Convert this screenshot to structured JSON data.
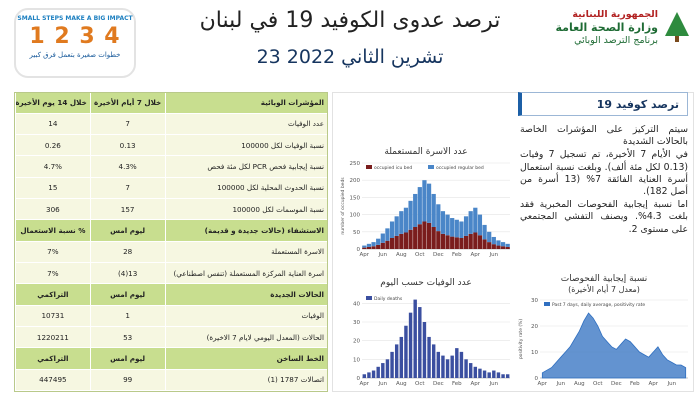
{
  "header": {
    "campaign": [
      "SMALL STEPS MAKE A BIG IMPACT",
      "1 2 3 4",
      "خطوات صغيرة بتعمل فرق كبير"
    ],
    "title": "ترصد عدوى الكوفيد 19 في لبنان",
    "date": "23 تشرين الثاني 2022",
    "ministry": [
      "الجمهورية اللبنانية",
      "وزارة الصحة العامة",
      "برنامج الترصد الوبائي"
    ]
  },
  "table": {
    "sections": [
      {
        "header": [
          "المؤشرات الوبائية",
          "خلال 7 أيام الأخيرة",
          "خلال 14 يوم الأخيرة"
        ],
        "rows": [
          [
            "عدد الوفيات",
            "7",
            "14"
          ],
          [
            "نسبة الوفيات لكل 100000",
            "0.13",
            "0.26"
          ],
          [
            "نسبة إيجابية فحص PCR لكل مئة فحص",
            "4.3%",
            "4.7%"
          ],
          [
            "نسبة الحدوث المحلية لكل 100000",
            "7",
            "15"
          ],
          [
            "نسبة الموسمات لكل 100000",
            "157",
            "306"
          ]
        ]
      },
      {
        "header": [
          "الاستشفاء (حالات جديدة و قديمة)",
          "ليوم امس",
          "% نسبة الاستعمال"
        ],
        "rows": [
          [
            "الاسرة المستعملة",
            "28",
            "7%"
          ],
          [
            "اسرة العناية المركزة المستعملة (تنفس اصطناعي)",
            "13(4)",
            "7%"
          ]
        ]
      },
      {
        "header": [
          "الحالات الجديدة",
          "ليوم امس",
          "التراكمي"
        ],
        "rows": [
          [
            "الوفيات",
            "1",
            "10731"
          ],
          [
            "الحالات (المعدل اليومي لايام 7 الاخيرة)",
            "53",
            "1220211"
          ]
        ]
      },
      {
        "header": [
          "الخط الساخن",
          "ليوم امس",
          "التراكمي"
        ],
        "rows": [
          [
            "اتصالات 1787 (1)",
            "99",
            "447495"
          ]
        ]
      }
    ]
  },
  "summary": {
    "title": "ترصد كوفيد 19",
    "paragraphs": [
      "سيتم التركيز على المؤشرات الخاصة بالحالات الشديدة",
      "في الأيام 7 الأخيرة، تم تسجيل 7 وفيات (0.13 لكل مئة ألف). وبلغت نسبة استعمال أسرة العناية الفائقة 7% (13 أسرة من أصل 182).",
      "اما نسبة إيجابية الفحوصات المخبرية فقد بلغت 4.3%. ويصنف التفشي المجتمعي على مستوى 2."
    ]
  },
  "charts": [
    {
      "type": "stacked_bar",
      "title": "عدد الاسرة المستعملة",
      "y_label": "number of occupied beds",
      "categories": [
        "Apr",
        null,
        null,
        null,
        "Jun",
        null,
        null,
        null,
        "Aug",
        null,
        null,
        null,
        "Oct",
        null,
        null,
        null,
        "Dec",
        null,
        null,
        null,
        "Feb",
        null,
        null,
        null,
        "Apr",
        null,
        null,
        null,
        "Jun",
        null,
        null,
        null
      ],
      "series": [
        {
          "name": "occupied icu bed",
          "color": "#7a1d1d",
          "values": [
            4,
            6,
            8,
            12,
            18,
            24,
            32,
            38,
            44,
            48,
            56,
            64,
            72,
            80,
            76,
            64,
            52,
            44,
            40,
            36,
            34,
            32,
            38,
            44,
            48,
            40,
            28,
            20,
            14,
            10,
            8,
            6
          ]
        },
        {
          "name": "occupied regular bed",
          "color": "#4a86c8",
          "values": [
            6,
            9,
            12,
            18,
            27,
            36,
            48,
            57,
            66,
            72,
            84,
            96,
            108,
            120,
            114,
            96,
            78,
            66,
            60,
            54,
            51,
            48,
            57,
            66,
            72,
            60,
            42,
            30,
            21,
            15,
            12,
            9
          ]
        }
      ],
      "ylim": [
        0,
        250
      ],
      "yticks": [
        0,
        50,
        100,
        150,
        200,
        250
      ],
      "grid": true
    },
    {
      "type": "bar",
      "title": "عدد الوفيات حسب اليوم",
      "categories": [
        "Apr",
        null,
        null,
        null,
        "Jun",
        null,
        null,
        null,
        "Aug",
        null,
        null,
        null,
        "Oct",
        null,
        null,
        null,
        "Dec",
        null,
        null,
        null,
        "Feb",
        null,
        null,
        null,
        "Apr",
        null,
        null,
        null,
        "Jun",
        null,
        null,
        null
      ],
      "series": [
        {
          "name": "Daily deaths",
          "color": "#3b4fa0",
          "values": [
            2,
            3,
            4,
            6,
            8,
            10,
            14,
            18,
            22,
            28,
            35,
            42,
            38,
            30,
            22,
            18,
            14,
            12,
            10,
            12,
            16,
            14,
            10,
            8,
            6,
            5,
            4,
            3,
            4,
            3,
            2,
            2
          ]
        }
      ],
      "ylim": [
        0,
        45
      ],
      "yticks": [
        0,
        10,
        20,
        30,
        40
      ],
      "grid": true
    },
    {
      "type": "area",
      "title": "نسبة إيجابية الفحوصات",
      "subtitle": "(معدل 7 أيام الأخيرة)",
      "y_label": "positivity rate (%)",
      "categories": [
        "Apr",
        null,
        null,
        null,
        "Jun",
        null,
        null,
        null,
        "Aug",
        null,
        null,
        null,
        "Oct",
        null,
        null,
        null,
        "Dec",
        null,
        null,
        null,
        "Feb",
        null,
        null,
        null,
        "Apr",
        null,
        null,
        null,
        "Jun",
        null,
        null,
        null
      ],
      "series": [
        {
          "name": "Past 7 days, daily average, positivity rate",
          "color": "#2f6fc0",
          "values": [
            2,
            3,
            4,
            6,
            8,
            10,
            12,
            15,
            18,
            22,
            25,
            23,
            20,
            16,
            14,
            12,
            11,
            13,
            15,
            14,
            12,
            10,
            9,
            8,
            10,
            12,
            9,
            7,
            6,
            5,
            5,
            4
          ]
        }
      ],
      "ylim": [
        0,
        30
      ],
      "yticks": [
        0,
        10,
        20,
        30
      ],
      "grid": true
    }
  ]
}
